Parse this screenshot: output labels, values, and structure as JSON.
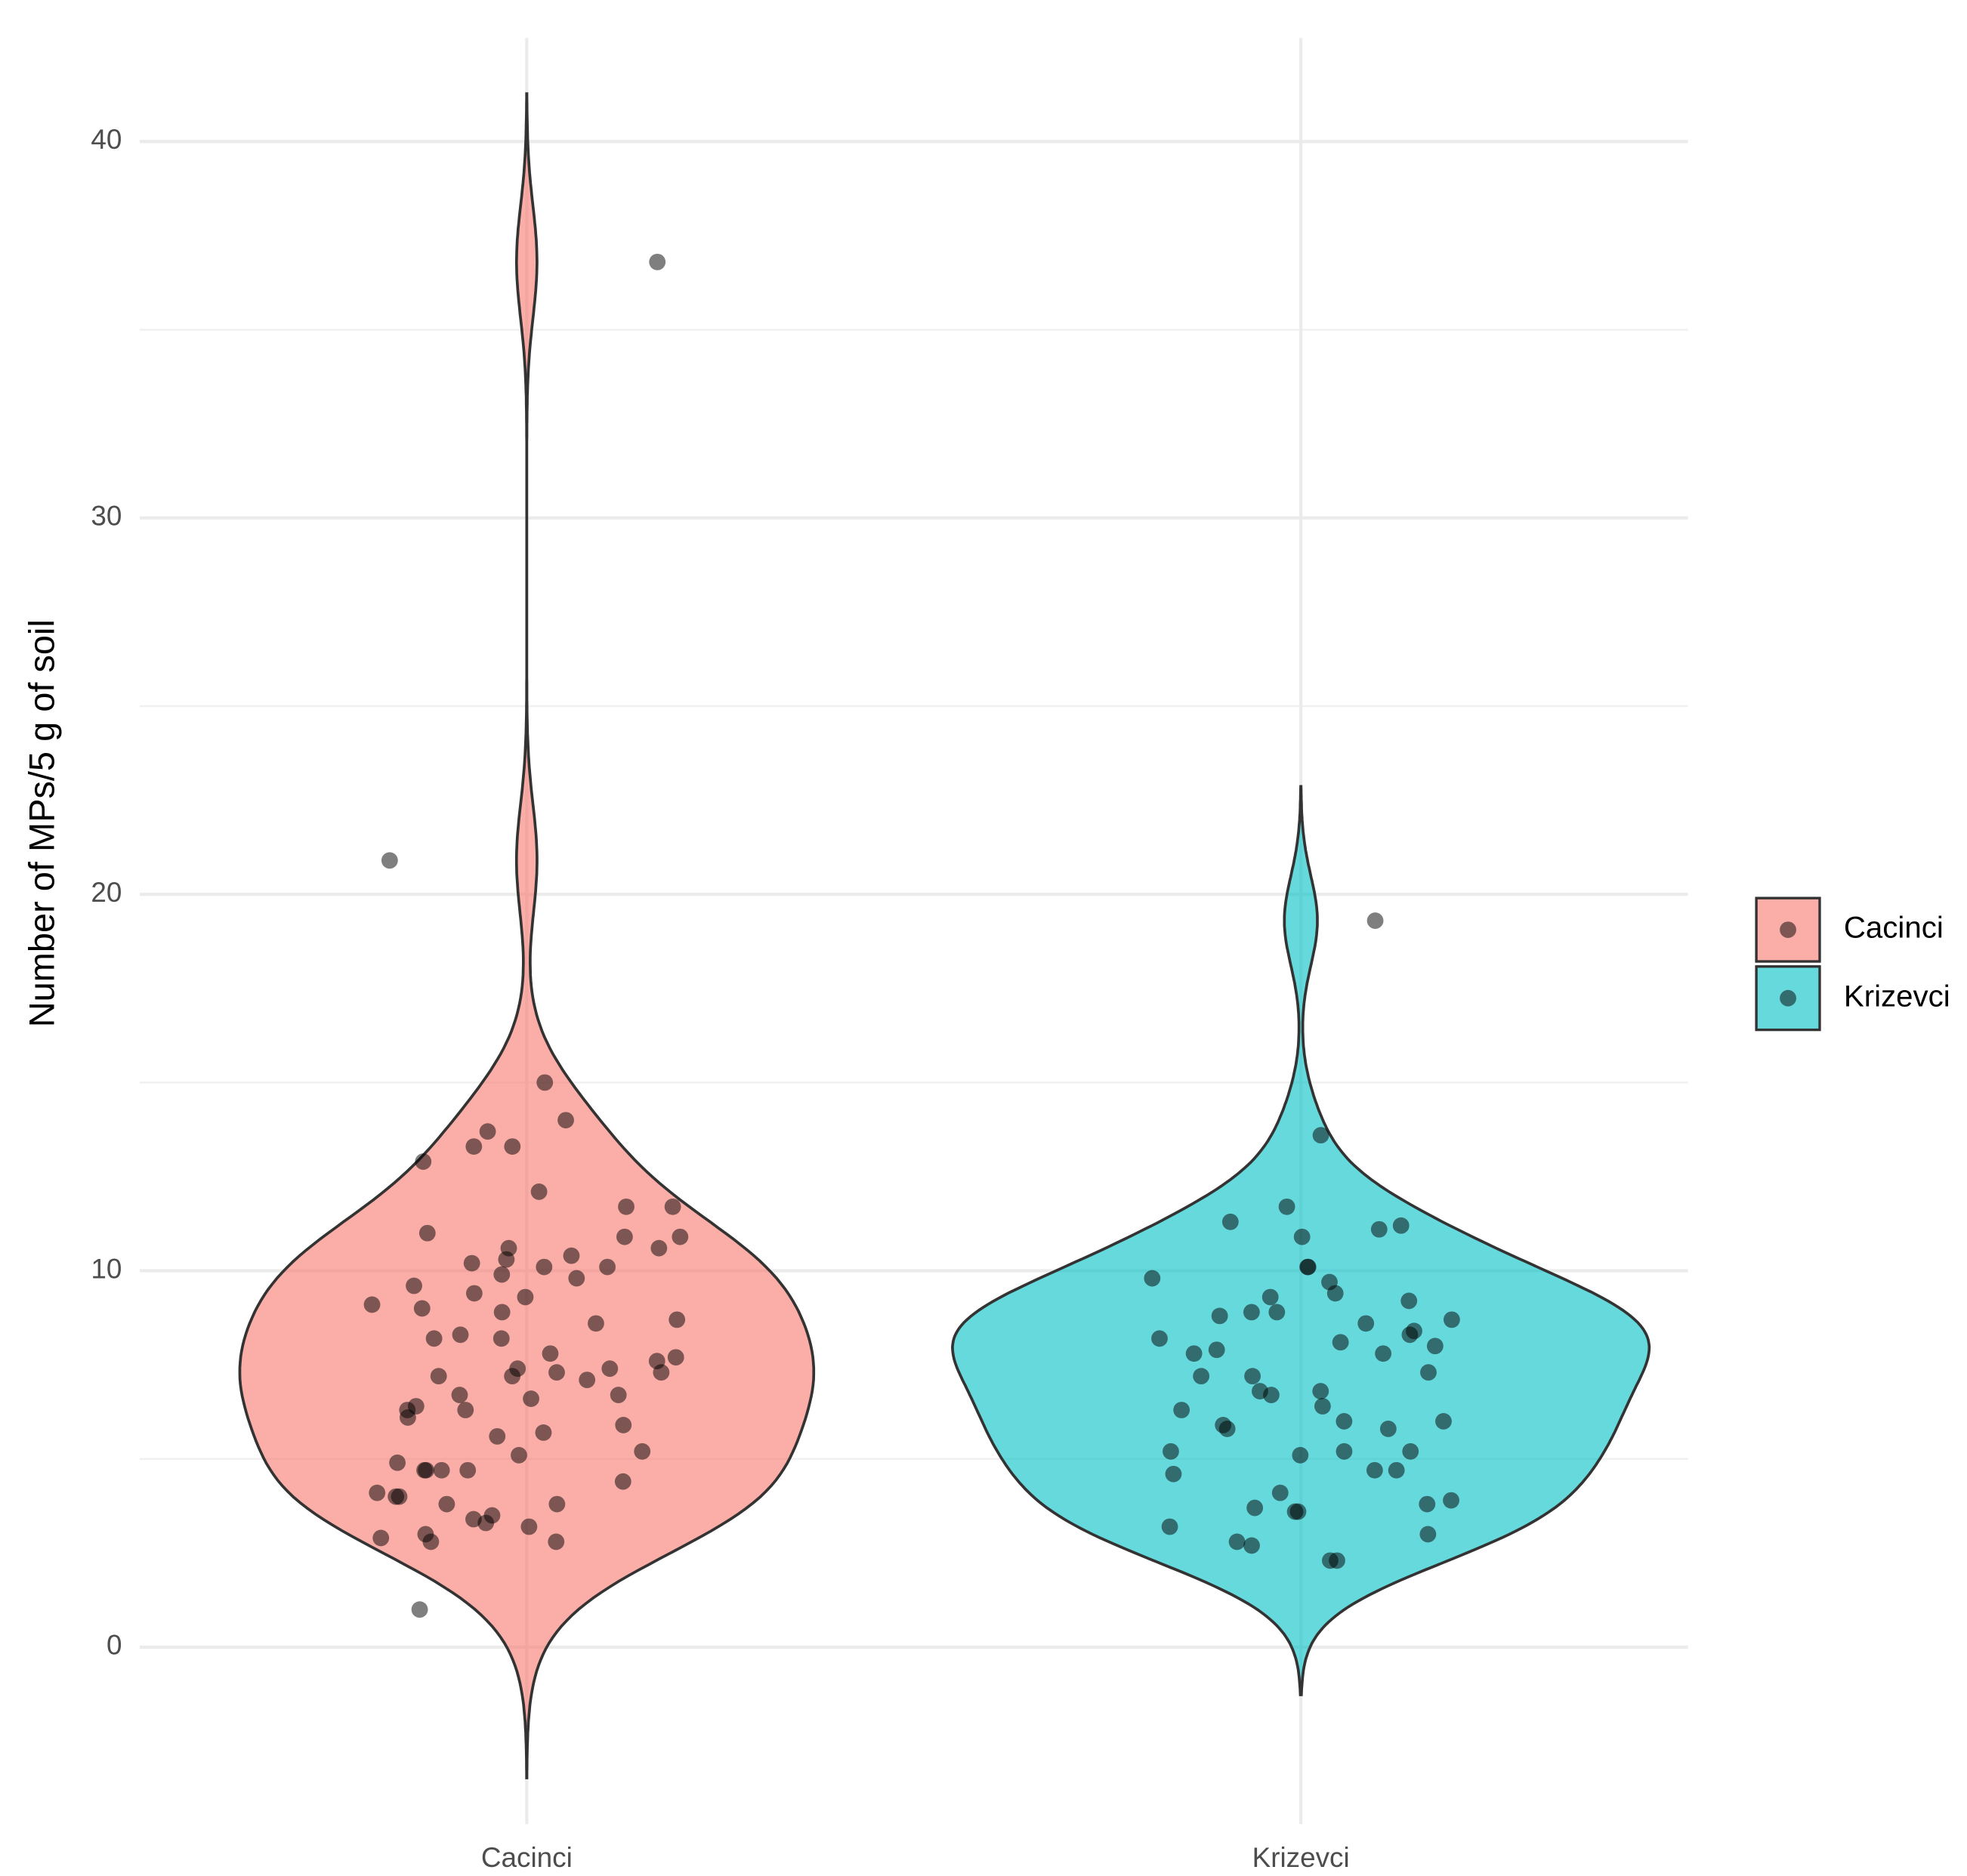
{
  "chart_data": {
    "type": "violin",
    "y_label": "Number of MPs/5 g of soil",
    "categories": [
      "Cacinci",
      "Krizevci"
    ],
    "series": [
      {
        "name": "Cacinci",
        "color": "#F8766D",
        "values": [
          36.8,
          20.9,
          15.0,
          13.7,
          13.3,
          14.0,
          12.9,
          13.3,
          12.1,
          11.7,
          11.7,
          11.0,
          10.9,
          10.9,
          10.6,
          10.6,
          10.3,
          10.4,
          10.2,
          10.1,
          10.1,
          9.8,
          9.9,
          9.6,
          9.4,
          9.3,
          9.1,
          9.0,
          8.9,
          8.7,
          8.6,
          8.3,
          8.2,
          8.2,
          7.8,
          7.7,
          7.6,
          7.4,
          7.4,
          7.3,
          7.3,
          7.2,
          7.2,
          7.1,
          6.7,
          6.7,
          6.6,
          6.4,
          6.3,
          6.3,
          6.1,
          5.9,
          5.7,
          5.6,
          5.2,
          5.1,
          4.7,
          4.7,
          4.7,
          4.7,
          4.9,
          4.4,
          4.1,
          4.0,
          4.0,
          3.8,
          3.8,
          3.5,
          3.4,
          3.3,
          3.2,
          3.0,
          2.9,
          2.8,
          2.8,
          1.0
        ]
      },
      {
        "name": "Krizevci",
        "color": "#00BFC4",
        "values": [
          19.3,
          13.6,
          11.7,
          11.3,
          11.2,
          11.1,
          10.9,
          10.1,
          10.1,
          9.8,
          9.7,
          9.4,
          9.3,
          9.2,
          8.9,
          8.9,
          8.8,
          8.7,
          8.6,
          8.4,
          8.3,
          8.2,
          8.1,
          8.0,
          7.9,
          7.8,
          7.8,
          7.3,
          7.2,
          7.2,
          6.8,
          6.8,
          6.7,
          6.4,
          6.3,
          6.0,
          6.0,
          5.9,
          5.8,
          5.8,
          5.2,
          5.2,
          5.2,
          5.1,
          4.7,
          4.7,
          4.6,
          4.1,
          3.9,
          3.8,
          3.6,
          3.7,
          3.6,
          3.2,
          3.0,
          2.8,
          2.7,
          2.3,
          2.3
        ]
      }
    ],
    "ylim": [
      -4.7,
      42.75
    ],
    "yticks": [
      0,
      10,
      20,
      30,
      40
    ],
    "grid": true,
    "legend": "right"
  }
}
